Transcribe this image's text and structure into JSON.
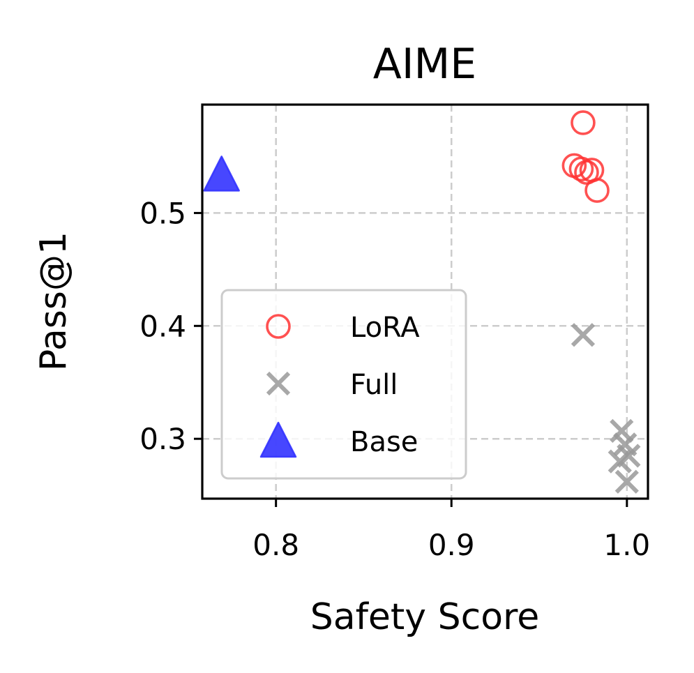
{
  "chart_data": {
    "type": "scatter",
    "title": "AIME",
    "xlabel": "Safety Score",
    "ylabel": "Pass@1",
    "xlim": [
      0.758,
      1.012
    ],
    "ylim": [
      0.247,
      0.596
    ],
    "xticks": [
      {
        "value": 0.8,
        "label": "0.8"
      },
      {
        "value": 0.9,
        "label": "0.9"
      },
      {
        "value": 1.0,
        "label": "1.0"
      }
    ],
    "yticks": [
      {
        "value": 0.3,
        "label": "0.3"
      },
      {
        "value": 0.4,
        "label": "0.4"
      },
      {
        "value": 0.5,
        "label": "0.5"
      }
    ],
    "grid": true,
    "legend_position": "lower-left",
    "series": [
      {
        "name": "LoRA",
        "marker": "circle-open",
        "color": "#ff3333",
        "points": [
          {
            "x": 0.975,
            "y": 0.58
          },
          {
            "x": 0.97,
            "y": 0.542
          },
          {
            "x": 0.974,
            "y": 0.539
          },
          {
            "x": 0.977,
            "y": 0.536
          },
          {
            "x": 0.98,
            "y": 0.538
          },
          {
            "x": 0.983,
            "y": 0.52
          }
        ]
      },
      {
        "name": "Full",
        "marker": "x",
        "color": "#999999",
        "points": [
          {
            "x": 0.975,
            "y": 0.392
          },
          {
            "x": 0.997,
            "y": 0.307
          },
          {
            "x": 0.999,
            "y": 0.295
          },
          {
            "x": 0.996,
            "y": 0.28
          },
          {
            "x": 1.001,
            "y": 0.285
          },
          {
            "x": 1.0,
            "y": 0.262
          }
        ]
      },
      {
        "name": "Base",
        "marker": "triangle",
        "color": "#3333ff",
        "points": [
          {
            "x": 0.769,
            "y": 0.534
          }
        ]
      }
    ]
  }
}
